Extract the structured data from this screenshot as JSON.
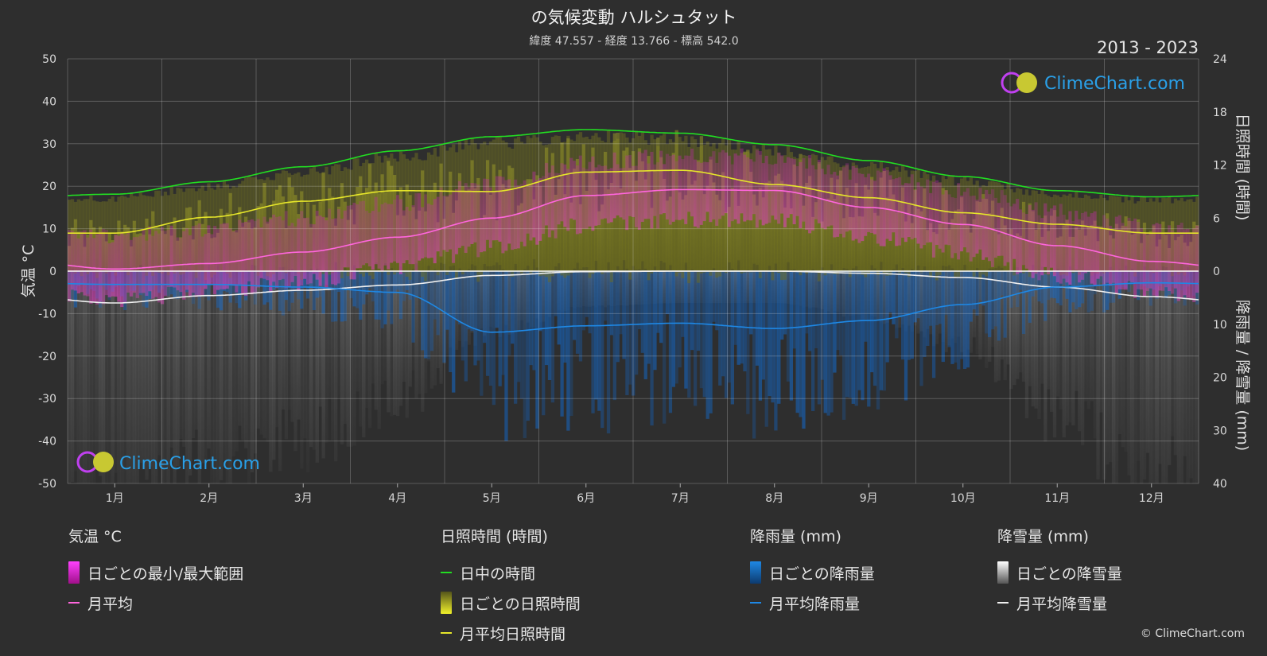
{
  "title": "の気候変動 ハルシュタット",
  "subtitle": "緯度 47.557 - 経度 13.766 - 標高 542.0",
  "year_range": "2013 - 2023",
  "watermark": "ClimeChart.com",
  "copyright": "© ClimeChart.com",
  "colors": {
    "background": "#2e2e2e",
    "daylight": "#22dd22",
    "sunshine_avg": "#e6e62a",
    "sunshine_band": "#8b8b25",
    "temp_avg": "#ff66dd",
    "temp_band": "#d030b0",
    "rain_avg": "#1e88e5",
    "rain_bar": "#1565c0",
    "snow_avg": "#f0f0f0",
    "snow_bar": "#9a9a9a",
    "brand": "#2aa0e8"
  },
  "chart_data": {
    "type": "line",
    "categories": [
      "1月",
      "2月",
      "3月",
      "4月",
      "5月",
      "6月",
      "7月",
      "8月",
      "9月",
      "10月",
      "11月",
      "12月"
    ],
    "left_axis": {
      "label": "気温 °C",
      "range": [
        -50,
        50
      ],
      "ticks": [
        "50",
        "40",
        "30",
        "20",
        "10",
        "0",
        "-10",
        "-20",
        "-30",
        "-40",
        "-50"
      ]
    },
    "right_axis_top": {
      "label": "日照時間 (時間)",
      "range": [
        0,
        24
      ],
      "ticks": [
        "24",
        "18",
        "12",
        "6",
        "0"
      ]
    },
    "right_axis_bottom": {
      "label": "降雨量 / 降雪量 (mm)",
      "range": [
        0,
        40
      ],
      "ticks": [
        "10",
        "20",
        "30",
        "40"
      ]
    },
    "series": [
      {
        "name": "日中の時間",
        "axis": "hours",
        "values": [
          8.7,
          10.1,
          11.8,
          13.6,
          15.2,
          16.0,
          15.6,
          14.3,
          12.5,
          10.7,
          9.1,
          8.4
        ]
      },
      {
        "name": "月平均日照時間",
        "axis": "hours",
        "values": [
          4.3,
          6.1,
          7.9,
          9.1,
          9.0,
          11.2,
          11.4,
          9.8,
          8.3,
          6.6,
          5.3,
          4.3
        ]
      },
      {
        "name": "月平均",
        "axis": "temp",
        "values": [
          0.5,
          1.8,
          4.5,
          8.0,
          12.5,
          17.8,
          19.2,
          19.0,
          15.0,
          11.0,
          6.0,
          2.3
        ]
      },
      {
        "name": "月平均降雨量",
        "axis": "precip",
        "values": [
          2.5,
          2.5,
          3.0,
          4.0,
          11.5,
          10.3,
          9.8,
          10.8,
          9.3,
          6.3,
          3.0,
          2.2
        ]
      },
      {
        "name": "月平均降雪量",
        "axis": "precip",
        "values": [
          6.0,
          4.6,
          3.6,
          2.6,
          0.8,
          0.1,
          0.0,
          0.0,
          0.4,
          1.2,
          3.0,
          4.8
        ]
      }
    ]
  },
  "legend": {
    "temp": {
      "title": "気温 °C",
      "items": [
        "日ごとの最小/最大範囲",
        "月平均"
      ]
    },
    "sun": {
      "title": "日照時間 (時間)",
      "items": [
        "日中の時間",
        "日ごとの日照時間",
        "月平均日照時間"
      ]
    },
    "rain": {
      "title": "降雨量 (mm)",
      "items": [
        "日ごとの降雨量",
        "月平均降雨量"
      ]
    },
    "snow": {
      "title": "降雪量 (mm)",
      "items": [
        "日ごとの降雪量",
        "月平均降雪量"
      ]
    }
  }
}
